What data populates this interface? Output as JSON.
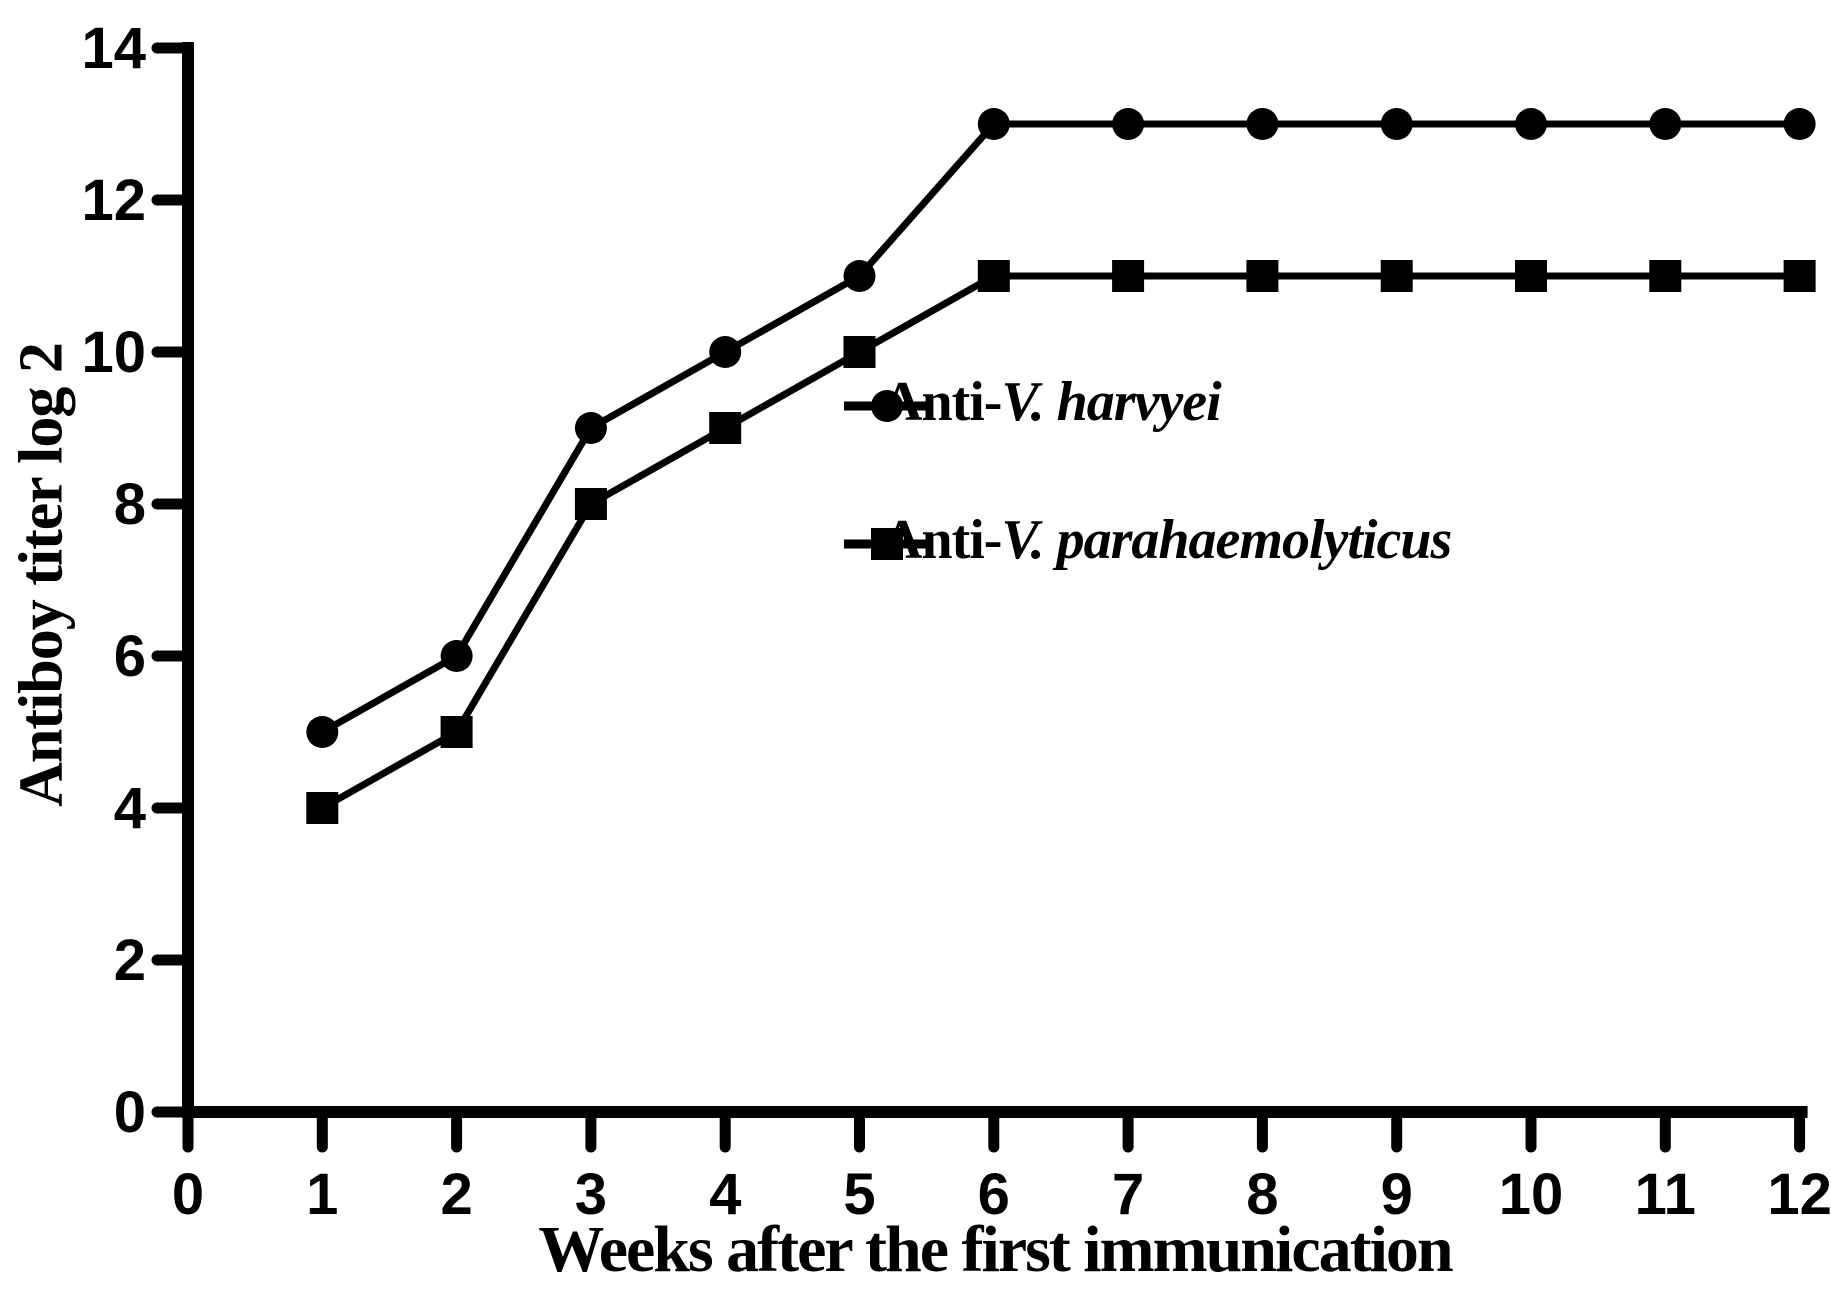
{
  "figure": {
    "background": "#ffffff",
    "ink": "#000000"
  },
  "chart_data": {
    "type": "line",
    "title": "",
    "xlabel": "Weeks after the first immunication",
    "ylabel": "Antiboy titer log 2",
    "x": [
      1,
      2,
      3,
      4,
      5,
      6,
      7,
      8,
      9,
      10,
      11,
      12
    ],
    "series": [
      {
        "name": "Anti-V. harvyei",
        "name_prefix": "Anti-",
        "name_species": "V. harvyei",
        "marker": "circle",
        "color": "#000000",
        "values": [
          5,
          6,
          9,
          10,
          11,
          13,
          13,
          13,
          13,
          13,
          13,
          13
        ]
      },
      {
        "name": "Anti-V. parahaemolyticus",
        "name_prefix": "Anti-",
        "name_species": "V. parahaemolyticus",
        "marker": "square",
        "color": "#000000",
        "values": [
          4,
          5,
          8,
          9,
          10,
          11,
          11,
          11,
          11,
          11,
          11,
          11
        ]
      }
    ],
    "xlim": [
      0,
      12
    ],
    "ylim": [
      0,
      14
    ],
    "x_ticks": [
      0,
      1,
      2,
      3,
      4,
      5,
      6,
      7,
      8,
      9,
      10,
      11,
      12
    ],
    "y_ticks": [
      0,
      2,
      4,
      6,
      8,
      10,
      12,
      14
    ],
    "grid": false,
    "legend_position": "inside-right-upper"
  }
}
